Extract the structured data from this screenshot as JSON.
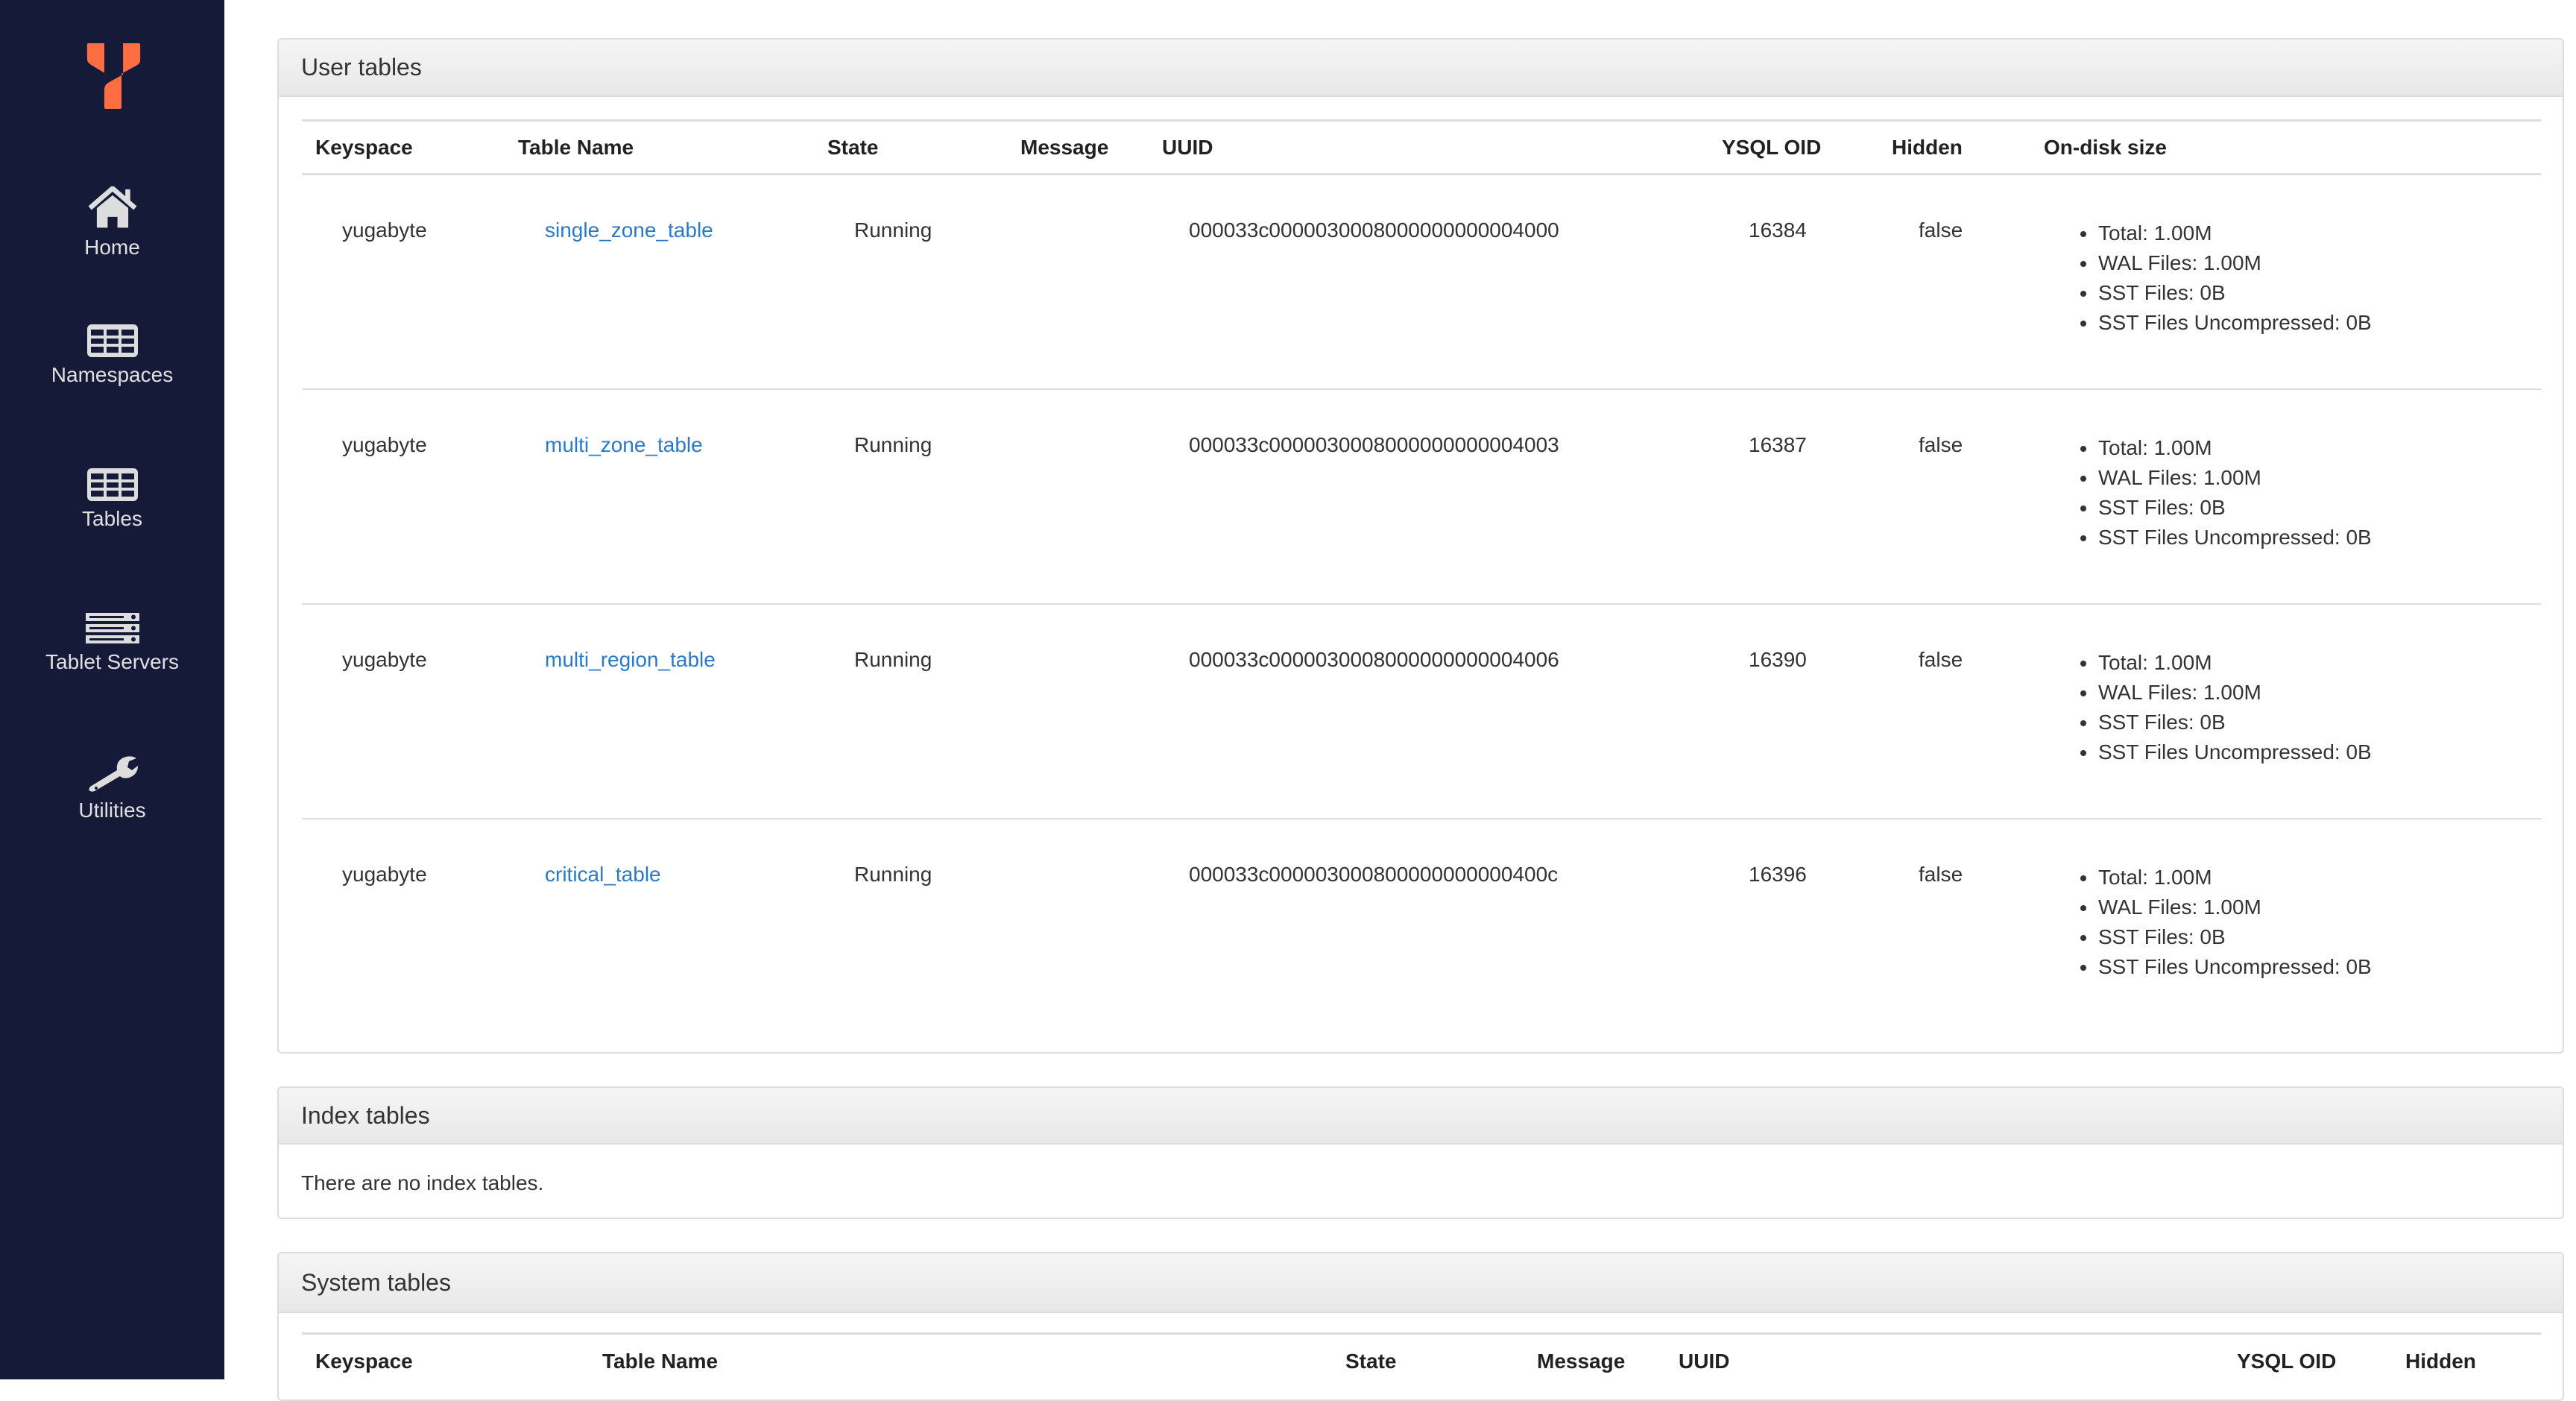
{
  "sidebar": {
    "brand_color": "#ff6e42",
    "items": [
      {
        "label": "Home",
        "icon": "home-icon"
      },
      {
        "label": "Namespaces",
        "icon": "table-grid-icon"
      },
      {
        "label": "Tables",
        "icon": "table-grid-icon"
      },
      {
        "label": "Tablet Servers",
        "icon": "server-icon"
      },
      {
        "label": "Utilities",
        "icon": "wrench-icon"
      }
    ]
  },
  "user_tables": {
    "title": "User tables",
    "columns": [
      "Keyspace",
      "Table Name",
      "State",
      "Message",
      "UUID",
      "YSQL OID",
      "Hidden",
      "On-disk size"
    ],
    "rows": [
      {
        "keyspace": "yugabyte",
        "name": "single_zone_table",
        "state": "Running",
        "message": "",
        "uuid": "000033c0000030008000000000004000",
        "oid": "16384",
        "hidden": "false",
        "size": [
          "Total: 1.00M",
          "WAL Files: 1.00M",
          "SST Files: 0B",
          "SST Files Uncompressed: 0B"
        ]
      },
      {
        "keyspace": "yugabyte",
        "name": "multi_zone_table",
        "state": "Running",
        "message": "",
        "uuid": "000033c0000030008000000000004003",
        "oid": "16387",
        "hidden": "false",
        "size": [
          "Total: 1.00M",
          "WAL Files: 1.00M",
          "SST Files: 0B",
          "SST Files Uncompressed: 0B"
        ]
      },
      {
        "keyspace": "yugabyte",
        "name": "multi_region_table",
        "state": "Running",
        "message": "",
        "uuid": "000033c0000030008000000000004006",
        "oid": "16390",
        "hidden": "false",
        "size": [
          "Total: 1.00M",
          "WAL Files: 1.00M",
          "SST Files: 0B",
          "SST Files Uncompressed: 0B"
        ]
      },
      {
        "keyspace": "yugabyte",
        "name": "critical_table",
        "state": "Running",
        "message": "",
        "uuid": "000033c000003000800000000000400c",
        "oid": "16396",
        "hidden": "false",
        "size": [
          "Total: 1.00M",
          "WAL Files: 1.00M",
          "SST Files: 0B",
          "SST Files Uncompressed: 0B"
        ]
      }
    ]
  },
  "index_tables": {
    "title": "Index tables",
    "empty_text": "There are no index tables."
  },
  "system_tables": {
    "title": "System tables",
    "columns": [
      "Keyspace",
      "Table Name",
      "State",
      "Message",
      "UUID",
      "YSQL OID",
      "Hidden"
    ]
  }
}
